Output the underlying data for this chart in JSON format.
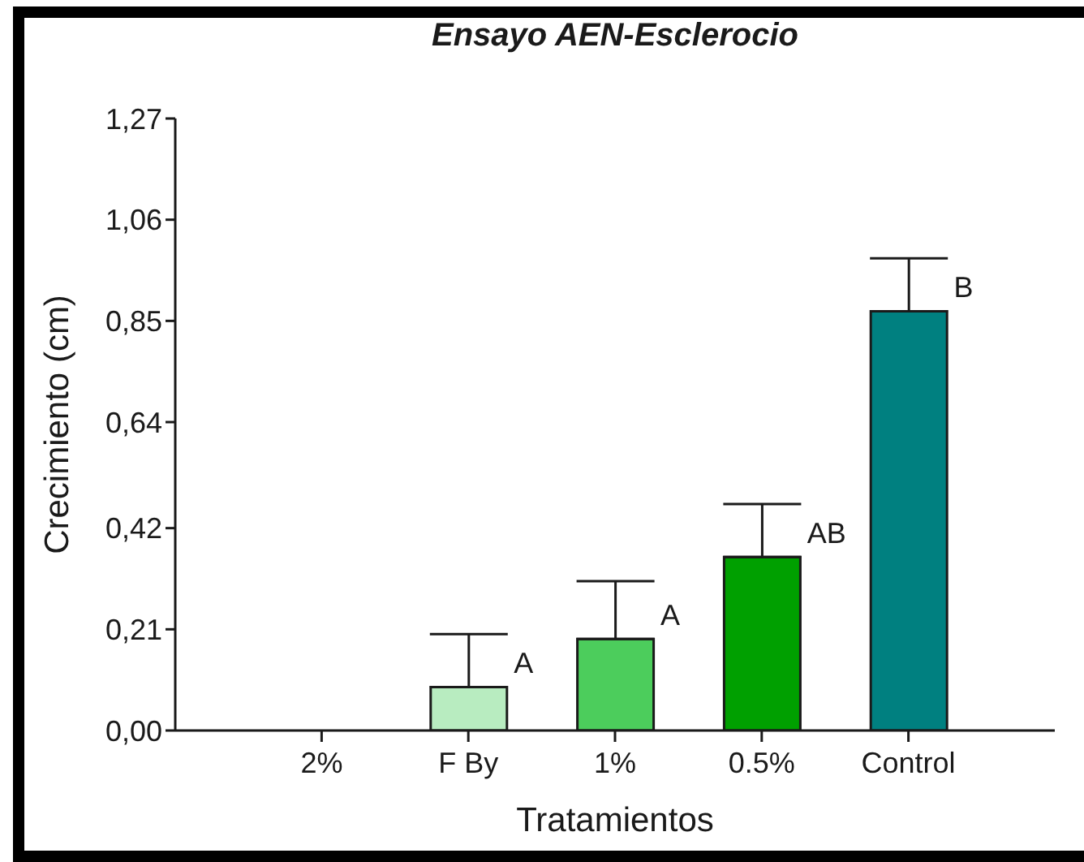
{
  "chart_data": {
    "type": "bar",
    "title": "Ensayo AEN-Esclerocio",
    "xlabel": "Tratamientos",
    "ylabel": "Crecimiento (cm)",
    "categories": [
      "2%",
      "F By",
      "1%",
      "0.5%",
      "Control"
    ],
    "values": [
      0,
      0.09,
      0.19,
      0.36,
      0.87
    ],
    "colors": [
      "#b8ecc0",
      "#b8ecc0",
      "#4ccd5c",
      "#00a000",
      "#008080"
    ],
    "errors": [
      null,
      [
        0.09,
        0.2
      ],
      [
        0.19,
        0.31
      ],
      [
        0.36,
        0.47
      ],
      [
        0.87,
        0.98
      ]
    ],
    "ylim": [
      0,
      1.27
    ],
    "yticks": [
      {
        "value": 0,
        "label": "0,00"
      },
      {
        "value": 0.21,
        "label": "0,21"
      },
      {
        "value": 0.42,
        "label": "0,42"
      },
      {
        "value": 0.64,
        "label": "0,64"
      },
      {
        "value": 0.85,
        "label": "0,85"
      },
      {
        "value": 1.06,
        "label": "1,06"
      },
      {
        "value": 1.27,
        "label": "1,27"
      }
    ],
    "grid": false,
    "legend": false,
    "annotations": [
      {
        "text": "A",
        "x": "F By",
        "y": 0.14
      },
      {
        "text": "A",
        "x": "1%",
        "y": 0.24
      },
      {
        "text": "AB",
        "x": "0.5%",
        "y": 0.41
      },
      {
        "text": "B",
        "x": "Control",
        "y": 0.92
      }
    ]
  }
}
